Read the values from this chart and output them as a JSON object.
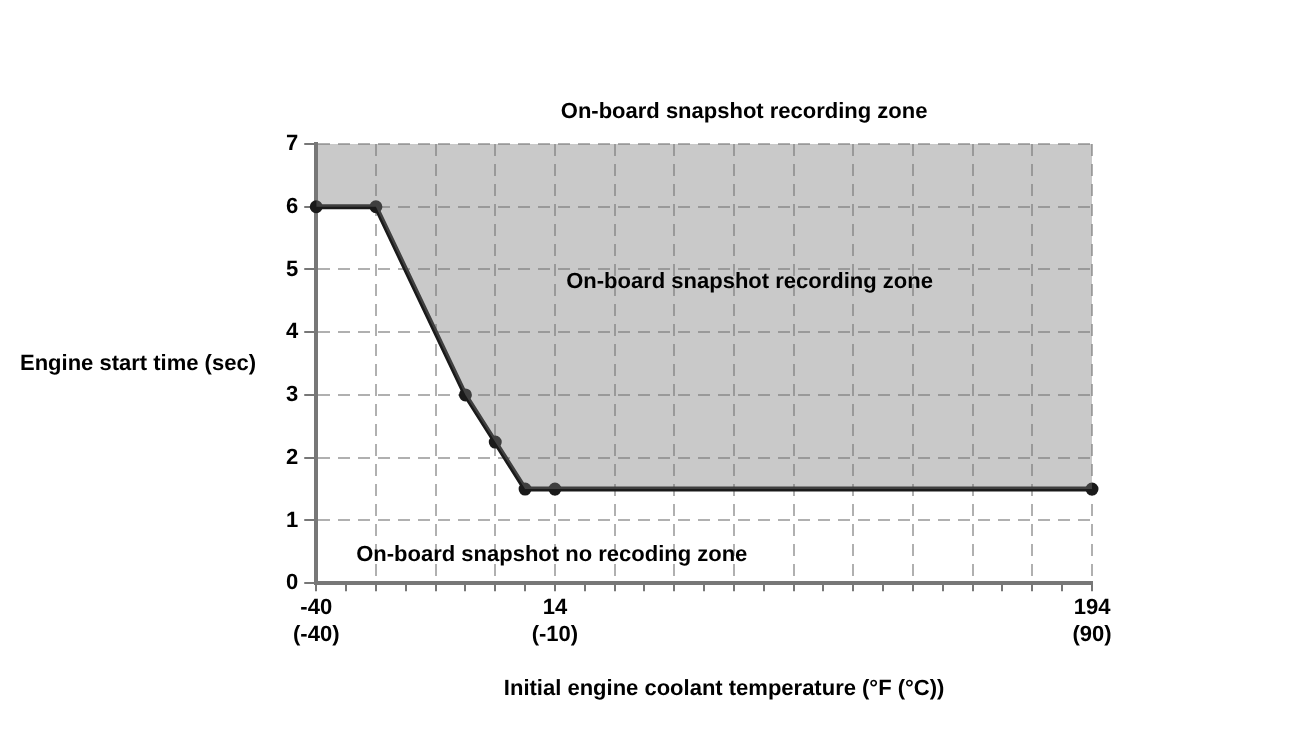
{
  "chart_data": {
    "type": "line",
    "title": "On-board snapshot recording zone",
    "xlabel": "Initial engine coolant temperature (°F (°C))",
    "ylabel": "Engine start time (sec)",
    "categories": [
      "-40\n(-40)",
      null,
      null,
      null,
      null,
      null,
      null,
      null,
      "14\n(-10)",
      null,
      null,
      null,
      null,
      null,
      null,
      null,
      null,
      null,
      null,
      null,
      null,
      null,
      null,
      null,
      null,
      null,
      "194\n(90)"
    ],
    "series": [
      {
        "color": "#1a1a1a",
        "values": [
          6,
          null,
          6,
          null,
          null,
          3,
          2.25,
          1.5,
          1.5,
          null,
          null,
          null,
          null,
          null,
          null,
          null,
          null,
          null,
          null,
          null,
          null,
          null,
          null,
          null,
          null,
          null,
          1.5
        ],
        "upper": [
          7,
          null,
          7,
          null,
          null,
          7,
          7,
          7,
          7,
          null,
          null,
          null,
          null,
          null,
          null,
          null,
          null,
          null,
          null,
          null,
          null,
          null,
          null,
          null,
          null,
          null,
          7
        ],
        "lower": [
          6,
          null,
          6,
          null,
          null,
          3,
          2.25,
          1.5,
          1.5,
          null,
          null,
          null,
          null,
          null,
          null,
          null,
          null,
          null,
          null,
          null,
          null,
          null,
          null,
          null,
          null,
          null,
          1.5
        ]
      }
    ],
    "ylim": [
      0,
      7
    ],
    "yticks": [
      0,
      1,
      2,
      3,
      4,
      5,
      6,
      7
    ],
    "grid": true,
    "marker": "circle",
    "line_style": "solid",
    "legend": false,
    "annotations": [
      "On-board snapshot recording zone",
      "On-board snapshot no recoding zone"
    ]
  }
}
